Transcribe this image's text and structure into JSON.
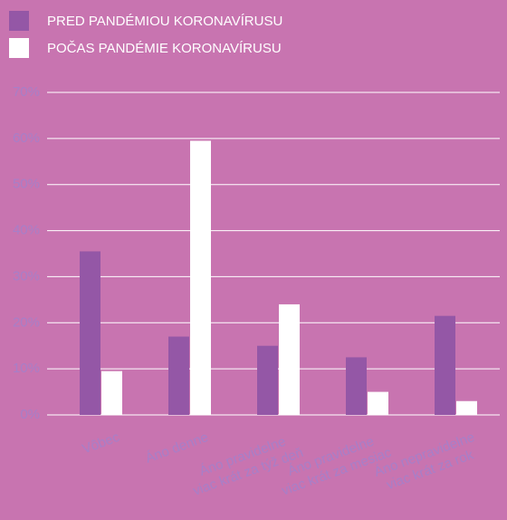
{
  "chart_data": {
    "type": "bar",
    "categories": [
      "Vôbec",
      "Áno denne",
      "Áno pravidelne\nviac krát za týž deň",
      "Áno pravidelne\nviac krát za mesiac",
      "Áno nepravidelne\nviac krát za rok"
    ],
    "series": [
      {
        "name": "PRED PANDÉMIOU KORONAVÍRUSU",
        "color": "#9457a6",
        "values": [
          35.5,
          17,
          15,
          12.5,
          21.5
        ]
      },
      {
        "name": "POČAS PANDÉMIE KORONAVÍRUSU",
        "color": "#ffffff",
        "values": [
          9.5,
          59.5,
          24,
          5,
          3
        ]
      }
    ],
    "ylim": [
      0,
      70
    ],
    "yticks": [
      {
        "value": 0,
        "label": "0%"
      },
      {
        "value": 10,
        "label": "10%"
      },
      {
        "value": 20,
        "label": "20%"
      },
      {
        "value": 30,
        "label": "30%"
      },
      {
        "value": 40,
        "label": "40%"
      },
      {
        "value": 50,
        "label": "50%"
      },
      {
        "value": 60,
        "label": "60%"
      },
      {
        "value": 70,
        "label": "70%"
      }
    ],
    "grid": true,
    "legend": "top-left"
  }
}
